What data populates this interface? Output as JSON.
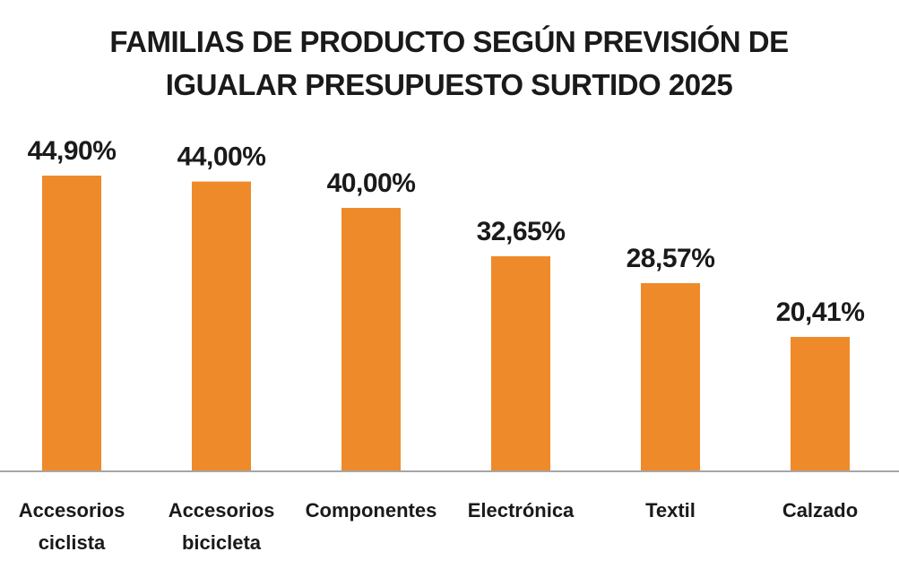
{
  "chart_data": {
    "type": "bar",
    "title": [
      "FAMILIAS DE PRODUCTO SEGÚN PREVISIÓN DE",
      "IGUALAR PRESUPUESTO SURTIDO 2025"
    ],
    "categories": [
      [
        "Accesorios",
        "ciclista"
      ],
      [
        "Accesorios",
        "bicicleta"
      ],
      [
        "Componentes"
      ],
      [
        "Electrónica"
      ],
      [
        "Textil"
      ],
      [
        "Calzado"
      ]
    ],
    "values": [
      44.9,
      44.0,
      40.0,
      32.65,
      28.57,
      20.41
    ],
    "value_labels": [
      "44,90%",
      "44,00%",
      "40,00%",
      "32,65%",
      "28,57%",
      "20,41%"
    ],
    "bar_color": "#ef8a2a",
    "axis_color": "#a6a6a6",
    "ylim": [
      0,
      50
    ],
    "xlabel": "",
    "ylabel": "",
    "grid": false,
    "legend": "none"
  }
}
